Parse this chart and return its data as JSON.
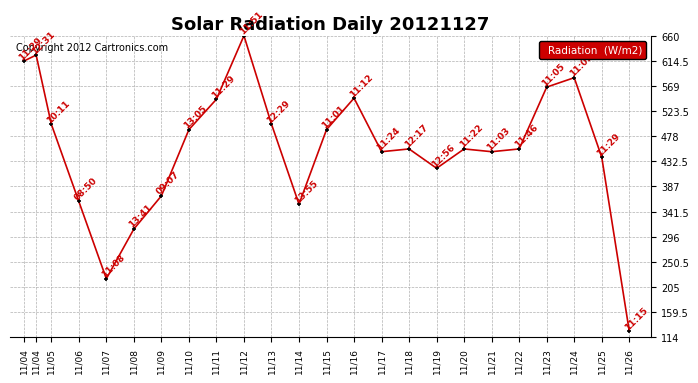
{
  "title": "Solar Radiation Daily 20121127",
  "copyright": "Copyright 2012 Cartronics.com",
  "legend_label": "Radiation  (W/m2)",
  "points": [
    [
      0.0,
      614,
      "11:29"
    ],
    [
      0.45,
      625,
      "12:31"
    ],
    [
      1.0,
      500,
      "10:11"
    ],
    [
      2.0,
      360,
      "08:50"
    ],
    [
      3.0,
      220,
      "11:08"
    ],
    [
      4.0,
      310,
      "13:41"
    ],
    [
      5.0,
      370,
      "09:07"
    ],
    [
      6.0,
      490,
      "13:05"
    ],
    [
      7.0,
      545,
      "11:29"
    ],
    [
      8.0,
      660,
      "11:51"
    ],
    [
      9.0,
      500,
      "12:29"
    ],
    [
      10.0,
      355,
      "13:55"
    ],
    [
      11.0,
      490,
      "11:01"
    ],
    [
      12.0,
      547,
      "11:12"
    ],
    [
      13.0,
      450,
      "11:24"
    ],
    [
      14.0,
      455,
      "12:17"
    ],
    [
      15.0,
      420,
      "12:56"
    ],
    [
      16.0,
      455,
      "11:22"
    ],
    [
      17.0,
      450,
      "11:03"
    ],
    [
      18.0,
      455,
      "11:46"
    ],
    [
      19.0,
      567,
      "11:05"
    ],
    [
      20.0,
      584,
      "11:05"
    ],
    [
      21.0,
      440,
      "11:29"
    ],
    [
      22.0,
      125,
      "11:15"
    ]
  ],
  "xtick_positions": [
    0.0,
    0.45,
    1.0,
    2.0,
    3.0,
    4.0,
    5.0,
    6.0,
    7.0,
    8.0,
    9.0,
    10.0,
    11.0,
    12.0,
    13.0,
    14.0,
    15.0,
    16.0,
    17.0,
    18.0,
    19.0,
    20.0,
    21.0,
    22.0
  ],
  "xtick_labels": [
    "11/04",
    "11/04",
    "11/05",
    "11/06",
    "11/07",
    "11/08",
    "11/09",
    "11/10",
    "11/11",
    "11/12",
    "11/13",
    "11/14",
    "11/15",
    "11/16",
    "11/17",
    "11/18",
    "11/19",
    "11/20",
    "11/21",
    "11/22",
    "11/23",
    "11/24",
    "11/25",
    "11/26"
  ],
  "ylim": [
    114,
    660
  ],
  "yticks": [
    114.0,
    159.5,
    205.0,
    250.5,
    296.0,
    341.5,
    387.0,
    432.5,
    478.0,
    523.5,
    569.0,
    614.5,
    660.0
  ],
  "ytick_labels": [
    "114",
    "159.5",
    "205",
    "250.5",
    "296",
    "341.5",
    "387",
    "432.5",
    "478",
    "523.5",
    "569",
    "614.5",
    "660"
  ],
  "line_color": "#cc0000",
  "marker_color": "#000000",
  "label_color": "#cc0000",
  "legend_bg": "#cc0000",
  "legend_text_color": "#ffffff",
  "background_color": "#ffffff",
  "grid_color": "#b0b0b0"
}
